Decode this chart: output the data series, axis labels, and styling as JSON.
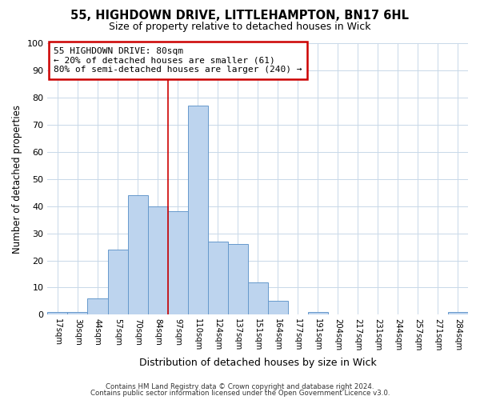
{
  "title1": "55, HIGHDOWN DRIVE, LITTLEHAMPTON, BN17 6HL",
  "title2": "Size of property relative to detached houses in Wick",
  "xlabel": "Distribution of detached houses by size in Wick",
  "ylabel": "Number of detached properties",
  "annotation_line1": "55 HIGHDOWN DRIVE: 80sqm",
  "annotation_line2": "← 20% of detached houses are smaller (61)",
  "annotation_line3": "80% of semi-detached houses are larger (240) →",
  "bar_labels": [
    "17sqm",
    "30sqm",
    "44sqm",
    "57sqm",
    "70sqm",
    "84sqm",
    "97sqm",
    "110sqm",
    "124sqm",
    "137sqm",
    "151sqm",
    "164sqm",
    "177sqm",
    "191sqm",
    "204sqm",
    "217sqm",
    "231sqm",
    "244sqm",
    "257sqm",
    "271sqm",
    "284sqm"
  ],
  "bar_values": [
    1,
    1,
    6,
    24,
    44,
    40,
    38,
    77,
    27,
    26,
    12,
    5,
    0,
    1,
    0,
    0,
    0,
    0,
    0,
    0,
    1
  ],
  "bar_color": "#bdd4ee",
  "bar_edge_color": "#6699cc",
  "vline_x": 5.5,
  "vline_color": "#cc0000",
  "ylim": [
    0,
    100
  ],
  "yticks": [
    0,
    10,
    20,
    30,
    40,
    50,
    60,
    70,
    80,
    90,
    100
  ],
  "bg_color": "#ffffff",
  "plot_bg_color": "#ffffff",
  "grid_color": "#c8d8e8",
  "annotation_box_color": "#ffffff",
  "annotation_box_edge": "#cc0000",
  "footer1": "Contains HM Land Registry data © Crown copyright and database right 2024.",
  "footer2": "Contains public sector information licensed under the Open Government Licence v3.0."
}
